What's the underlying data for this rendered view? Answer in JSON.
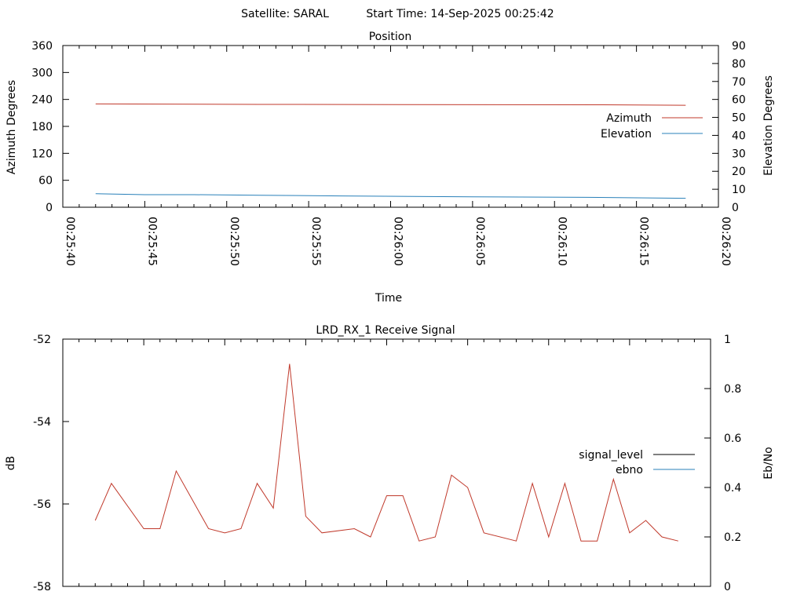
{
  "header": {
    "satellite": "Satellite: SARAL",
    "start_time": "Start Time: 14-Sep-2025 00:25:42"
  },
  "chart_data": [
    {
      "type": "line",
      "title": "Position",
      "xlabel": "Time",
      "ylabel": "Azimuth Degrees",
      "y2label": "Elevation Degrees",
      "x_tick_labels": [
        "00:25:40",
        "00:25:45",
        "00:25:50",
        "00:25:55",
        "00:26:00",
        "00:26:05",
        "00:26:10",
        "00:26:15",
        "00:26:20"
      ],
      "y_ticks": [
        0,
        60,
        120,
        180,
        240,
        300,
        360
      ],
      "y2_ticks": [
        0,
        10,
        20,
        30,
        40,
        50,
        60,
        70,
        80,
        90
      ],
      "ylim": [
        0,
        360
      ],
      "y2lim": [
        0,
        90
      ],
      "legend_position": "right",
      "series": [
        {
          "name": "Azimuth",
          "axis": "left",
          "color": "#c0392b",
          "x": [
            "00:25:42",
            "00:25:52",
            "00:26:13",
            "00:26:18"
          ],
          "values": [
            230,
            229,
            228,
            227
          ]
        },
        {
          "name": "Elevation",
          "axis": "right",
          "color": "#2980b9",
          "x": [
            "00:25:42",
            "00:25:45",
            "00:25:48",
            "00:25:52",
            "00:25:57",
            "00:26:05",
            "00:26:12",
            "00:26:18"
          ],
          "values": [
            7.5,
            7.0,
            7.0,
            6.7,
            6.3,
            5.8,
            5.5,
            5.0
          ]
        }
      ]
    },
    {
      "type": "line",
      "title": "LRD_RX_1 Receive Signal",
      "ylabel": "dB",
      "y2label": "Eb/No",
      "y_tick_labels": [
        "-52",
        "-54",
        "-56",
        "-58"
      ],
      "y_ticks": [
        -52,
        -54,
        -56,
        -58
      ],
      "y2_tick_labels": [
        "1",
        "0.8",
        "0.6",
        "0.4",
        "0.2",
        "0"
      ],
      "y2_ticks": [
        1,
        0.8,
        0.6,
        0.4,
        0.2,
        0
      ],
      "ylim": [
        -58,
        -52
      ],
      "y2lim": [
        0,
        1
      ],
      "legend_position": "right",
      "legend": [
        {
          "name": "signal_level",
          "color": "#000000"
        },
        {
          "name": "ebno",
          "color": "#2980b9"
        }
      ],
      "series": [
        {
          "name": "signal",
          "axis": "left",
          "color": "#c0392b",
          "x": [
            "00:25:42",
            "00:25:43",
            "00:25:45",
            "00:25:46",
            "00:25:47",
            "00:25:49",
            "00:25:50",
            "00:25:51",
            "00:25:52",
            "00:25:53",
            "00:25:54",
            "00:25:55",
            "00:25:56",
            "00:25:58",
            "00:25:59",
            "00:26:00",
            "00:26:01",
            "00:26:02",
            "00:26:03",
            "00:26:04",
            "00:26:05",
            "00:26:06",
            "00:26:08",
            "00:26:09",
            "00:26:10",
            "00:26:11",
            "00:26:12",
            "00:26:13",
            "00:26:14",
            "00:26:15",
            "00:26:16",
            "00:26:17",
            "00:26:18"
          ],
          "values": [
            -56.4,
            -55.5,
            -56.6,
            -56.6,
            -55.2,
            -56.6,
            -56.7,
            -56.6,
            -55.5,
            -56.1,
            -52.6,
            -56.3,
            -56.7,
            -56.6,
            -56.8,
            -55.8,
            -55.8,
            -56.9,
            -56.8,
            -55.3,
            -55.6,
            -56.7,
            -56.9,
            -55.5,
            -56.8,
            -55.5,
            -56.9,
            -56.9,
            -55.4,
            -56.7,
            -56.4,
            -56.8,
            -56.9
          ]
        }
      ]
    }
  ]
}
